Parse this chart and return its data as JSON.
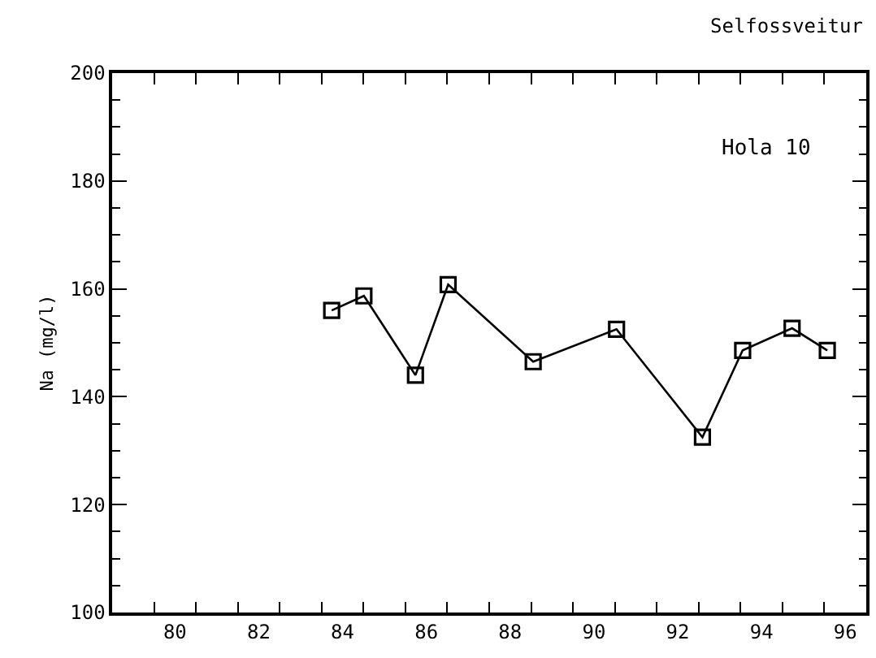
{
  "chart_data": {
    "type": "line",
    "title": "Selfossveitur",
    "ylabel": "Na (mg/l)",
    "annotations": [
      "Hola 10"
    ],
    "x": [
      84.24,
      85.01,
      86.24,
      87.02,
      89.05,
      91.04,
      93.09,
      94.05,
      95.23,
      96.07
    ],
    "series": [
      {
        "color": "#000000",
        "values": [
          156,
          158.7,
          144,
          160.8,
          146.5,
          152.5,
          132.5,
          148.6,
          152.7,
          148.6
        ]
      }
    ],
    "marker": "square",
    "line_style": "solid",
    "xlim": [
      79,
      97
    ],
    "xticks": [
      {
        "value": 80,
        "label": null
      },
      {
        "value": 80.5,
        "label": "80"
      },
      {
        "value": 81,
        "label": null
      },
      {
        "value": 82,
        "label": null
      },
      {
        "value": 82.5,
        "label": "82"
      },
      {
        "value": 83,
        "label": null
      },
      {
        "value": 84,
        "label": null
      },
      {
        "value": 84.5,
        "label": "84"
      },
      {
        "value": 85,
        "label": null
      },
      {
        "value": 86,
        "label": null
      },
      {
        "value": 86.5,
        "label": "86"
      },
      {
        "value": 87,
        "label": null
      },
      {
        "value": 88,
        "label": null
      },
      {
        "value": 88.5,
        "label": "88"
      },
      {
        "value": 89,
        "label": null
      },
      {
        "value": 90,
        "label": null
      },
      {
        "value": 90.5,
        "label": "90"
      },
      {
        "value": 91,
        "label": null
      },
      {
        "value": 92,
        "label": null
      },
      {
        "value": 92.5,
        "label": "92"
      },
      {
        "value": 93,
        "label": null
      },
      {
        "value": 94,
        "label": null
      },
      {
        "value": 94.5,
        "label": "94"
      },
      {
        "value": 95,
        "label": null
      },
      {
        "value": 96,
        "label": null
      },
      {
        "value": 96.5,
        "label": "96"
      }
    ],
    "ylim": [
      100,
      200
    ],
    "yticks": [
      100,
      {
        "value": 105,
        "label": null
      },
      {
        "value": 110,
        "label": null
      },
      {
        "value": 115,
        "label": null
      },
      120,
      {
        "value": 125,
        "label": null
      },
      {
        "value": 130,
        "label": null
      },
      {
        "value": 135,
        "label": null
      },
      140,
      {
        "value": 145,
        "label": null
      },
      {
        "value": 150,
        "label": null
      },
      {
        "value": 155,
        "label": null
      },
      160,
      {
        "value": 165,
        "label": null
      },
      {
        "value": 170,
        "label": null
      },
      {
        "value": 175,
        "label": null
      },
      180,
      {
        "value": 185,
        "label": null
      },
      {
        "value": 190,
        "label": null
      },
      {
        "value": 195,
        "label": null
      },
      200
    ]
  }
}
